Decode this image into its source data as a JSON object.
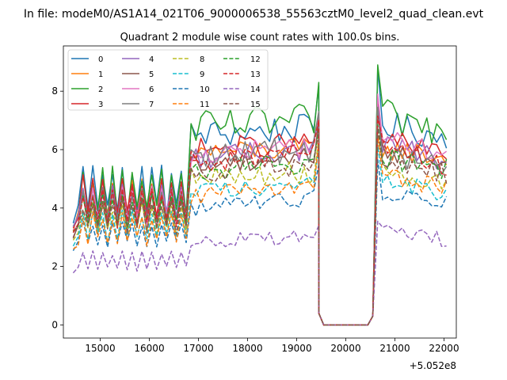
{
  "chart_data": {
    "type": "line",
    "suptitle": "In file: modeM0/AS1A14_021T06_9000006538_55563cztM0_level2_quad_clean.evt",
    "title": "Quadrant 2 module wise count rates with 100.0s bins.",
    "xlabel": "",
    "ylabel": "",
    "x_offset_label": "+5.052e8",
    "xlim": [
      14250,
      22250
    ],
    "ylim": [
      -0.45,
      9.55
    ],
    "xticks": [
      15000,
      16000,
      17000,
      18000,
      19000,
      20000,
      21000,
      22000
    ],
    "xtick_labels": [
      "15000",
      "16000",
      "17000",
      "18000",
      "19000",
      "20000",
      "21000",
      "22000"
    ],
    "yticks": [
      0,
      2,
      4,
      6,
      8
    ],
    "ytick_labels": [
      "0",
      "2",
      "4",
      "6",
      "8"
    ],
    "grid": false,
    "legend_position": "top-left",
    "segments": {
      "seg1": {
        "x_start": 14450,
        "x_end": 16750,
        "step": 100
      },
      "gap_start": {
        "x": [
          19450,
          19550,
          19650,
          19750,
          19850,
          19950,
          20050,
          20150,
          20250,
          20350,
          20450,
          20550
        ]
      },
      "seg2": {
        "x_start": 20650,
        "x_end": 22050,
        "step": 100
      }
    },
    "series": [
      {
        "name": "0",
        "color": "#1f77b4",
        "style": "solid",
        "base1": 4.6,
        "amp1": 0.8,
        "base2": 6.5,
        "amp2": 0.5,
        "peak2": 8.2,
        "level3": 6.9,
        "end3": 6.4
      },
      {
        "name": "1",
        "color": "#ff7f0e",
        "style": "solid",
        "base1": 4.2,
        "amp1": 0.7,
        "base2": 5.9,
        "amp2": 0.4,
        "peak2": 7.0,
        "level3": 6.1,
        "end3": 5.7
      },
      {
        "name": "2",
        "color": "#2ca02c",
        "style": "solid",
        "base1": 4.5,
        "amp1": 0.8,
        "base2": 6.7,
        "amp2": 0.6,
        "peak2": 8.3,
        "level3": 7.2,
        "end3": 6.6
      },
      {
        "name": "3",
        "color": "#d62728",
        "style": "solid",
        "base1": 4.3,
        "amp1": 0.7,
        "base2": 6.0,
        "amp2": 0.4,
        "peak2": 7.1,
        "level3": 6.4,
        "end3": 5.8
      },
      {
        "name": "4",
        "color": "#9467bd",
        "style": "solid",
        "base1": 4.2,
        "amp1": 0.6,
        "base2": 5.7,
        "amp2": 0.4,
        "peak2": 6.9,
        "level3": 6.3,
        "end3": 5.6
      },
      {
        "name": "5",
        "color": "#8c564b",
        "style": "solid",
        "base1": 3.8,
        "amp1": 0.6,
        "base2": 5.5,
        "amp2": 0.4,
        "peak2": 7.0,
        "level3": 6.0,
        "end3": 5.6
      },
      {
        "name": "6",
        "color": "#e377c2",
        "style": "solid",
        "base1": 4.1,
        "amp1": 0.6,
        "base2": 5.8,
        "amp2": 0.4,
        "peak2": 7.3,
        "level3": 6.4,
        "end3": 5.9
      },
      {
        "name": "7",
        "color": "#7f7f7f",
        "style": "solid",
        "base1": 4.0,
        "amp1": 0.6,
        "base2": 5.9,
        "amp2": 0.5,
        "peak2": 7.3,
        "level3": 6.0,
        "end3": 5.3
      },
      {
        "name": "8",
        "color": "#bcbd22",
        "style": "dashed",
        "base1": 3.6,
        "amp1": 0.5,
        "base2": 5.0,
        "amp2": 0.4,
        "peak2": 6.4,
        "level3": 5.4,
        "end3": 4.8
      },
      {
        "name": "9",
        "color": "#17becf",
        "style": "dashed",
        "base1": 3.4,
        "amp1": 0.5,
        "base2": 4.6,
        "amp2": 0.3,
        "peak2": 6.0,
        "level3": 5.0,
        "end3": 4.5
      },
      {
        "name": "10",
        "color": "#1f77b4",
        "style": "dashed",
        "base1": 3.1,
        "amp1": 0.4,
        "base2": 4.0,
        "amp2": 0.3,
        "peak2": 5.5,
        "level3": 4.6,
        "end3": 4.2
      },
      {
        "name": "11",
        "color": "#ff7f0e",
        "style": "dashed",
        "base1": 3.3,
        "amp1": 0.5,
        "base2": 4.4,
        "amp2": 0.3,
        "peak2": 6.3,
        "level3": 5.1,
        "end3": 4.7
      },
      {
        "name": "12",
        "color": "#2ca02c",
        "style": "dashed",
        "base1": 3.9,
        "amp1": 0.5,
        "base2": 5.3,
        "amp2": 0.4,
        "peak2": 6.7,
        "level3": 5.8,
        "end3": 5.3
      },
      {
        "name": "13",
        "color": "#d62728",
        "style": "dashed",
        "base1": 4.0,
        "amp1": 0.6,
        "base2": 5.6,
        "amp2": 0.4,
        "peak2": 7.0,
        "level3": 6.0,
        "end3": 5.5
      },
      {
        "name": "14",
        "color": "#9467bd",
        "style": "dashed",
        "base1": 2.2,
        "amp1": 0.3,
        "base2": 2.8,
        "amp2": 0.25,
        "peak2": 3.4,
        "level3": 3.3,
        "end3": 2.9
      },
      {
        "name": "15",
        "color": "#8c564b",
        "style": "dashed",
        "base1": 3.7,
        "amp1": 0.5,
        "base2": 5.2,
        "amp2": 0.4,
        "peak2": 6.6,
        "level3": 5.7,
        "end3": 5.1
      }
    ]
  }
}
